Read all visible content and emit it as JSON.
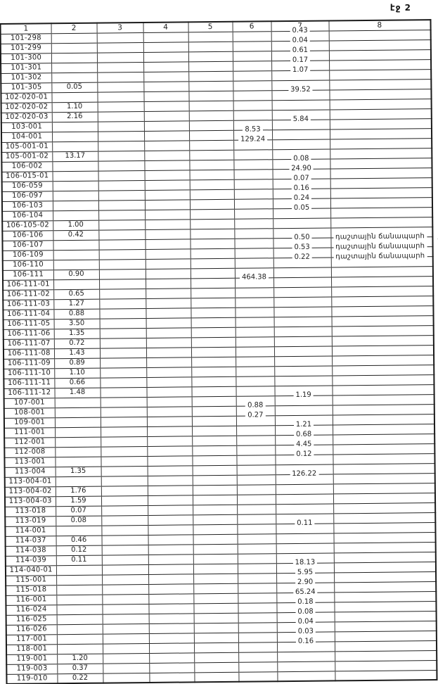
{
  "page_label": "էջ 2",
  "colors": {
    "ink": "#1e1e1e",
    "paper": "#ffffff",
    "rule": "#232323"
  },
  "table": {
    "column_headers": [
      "1",
      "2",
      "3",
      "4",
      "5",
      "6",
      "7",
      "8"
    ],
    "note_text": "դաշտային ճանապարհ",
    "rows": [
      [
        "101-298",
        "",
        "",
        "",
        "",
        "",
        "0.43",
        ""
      ],
      [
        "101-299",
        "",
        "",
        "",
        "",
        "",
        "0.04",
        ""
      ],
      [
        "101-300",
        "",
        "",
        "",
        "",
        "",
        "0.61",
        ""
      ],
      [
        "101-301",
        "",
        "",
        "",
        "",
        "",
        "0.17",
        ""
      ],
      [
        "101-302",
        "",
        "",
        "",
        "",
        "",
        "1.07",
        ""
      ],
      [
        "101-305",
        "0.05",
        "",
        "",
        "",
        "",
        "",
        ""
      ],
      [
        "102-020-01",
        "",
        "",
        "",
        "",
        "",
        "39.52",
        ""
      ],
      [
        "102-020-02",
        "1.10",
        "",
        "",
        "",
        "",
        "",
        ""
      ],
      [
        "102-020-03",
        "2.16",
        "",
        "",
        "",
        "",
        "",
        ""
      ],
      [
        "103-001",
        "",
        "",
        "",
        "",
        "",
        "5.84",
        ""
      ],
      [
        "104-001",
        "",
        "",
        "",
        "",
        "8.53",
        "",
        ""
      ],
      [
        "105-001-01",
        "",
        "",
        "",
        "",
        "129.24",
        "",
        ""
      ],
      [
        "105-001-02",
        "13.17",
        "",
        "",
        "",
        "",
        "",
        ""
      ],
      [
        "106-002",
        "",
        "",
        "",
        "",
        "",
        "0.08",
        ""
      ],
      [
        "106-015-01",
        "",
        "",
        "",
        "",
        "",
        "24.90",
        ""
      ],
      [
        "106-059",
        "",
        "",
        "",
        "",
        "",
        "0.07",
        ""
      ],
      [
        "106-097",
        "",
        "",
        "",
        "",
        "",
        "0.16",
        ""
      ],
      [
        "106-103",
        "",
        "",
        "",
        "",
        "",
        "0.24",
        ""
      ],
      [
        "106-104",
        "",
        "",
        "",
        "",
        "",
        "0.05",
        ""
      ],
      [
        "106-105-02",
        "1.00",
        "",
        "",
        "",
        "",
        "",
        ""
      ],
      [
        "106-106",
        "0.42",
        "",
        "",
        "",
        "",
        "",
        ""
      ],
      [
        "106-107",
        "",
        "",
        "",
        "",
        "",
        "0.50",
        "դաշտային ճանապարհ"
      ],
      [
        "106-109",
        "",
        "",
        "",
        "",
        "",
        "0.53",
        "դաշտային ճանապարհ"
      ],
      [
        "106-110",
        "",
        "",
        "",
        "",
        "",
        "0.22",
        "դաշտային ճանապարհ"
      ],
      [
        "106-111",
        "0.90",
        "",
        "",
        "",
        "",
        "",
        ""
      ],
      [
        "106-111-01",
        "",
        "",
        "",
        "",
        "464.38",
        "",
        ""
      ],
      [
        "106-111-02",
        "0.65",
        "",
        "",
        "",
        "",
        "",
        ""
      ],
      [
        "106-111-03",
        "1.27",
        "",
        "",
        "",
        "",
        "",
        ""
      ],
      [
        "106-111-04",
        "0.88",
        "",
        "",
        "",
        "",
        "",
        ""
      ],
      [
        "106-111-05",
        "3.50",
        "",
        "",
        "",
        "",
        "",
        ""
      ],
      [
        "106-111-06",
        "1.35",
        "",
        "",
        "",
        "",
        "",
        ""
      ],
      [
        "106-111-07",
        "0.72",
        "",
        "",
        "",
        "",
        "",
        ""
      ],
      [
        "106-111-08",
        "1.43",
        "",
        "",
        "",
        "",
        "",
        ""
      ],
      [
        "106-111-09",
        "0.89",
        "",
        "",
        "",
        "",
        "",
        ""
      ],
      [
        "106-111-10",
        "1.10",
        "",
        "",
        "",
        "",
        "",
        ""
      ],
      [
        "106-111-11",
        "0.66",
        "",
        "",
        "",
        "",
        "",
        ""
      ],
      [
        "106-111-12",
        "1.48",
        "",
        "",
        "",
        "",
        "",
        ""
      ],
      [
        "107-001",
        "",
        "",
        "",
        "",
        "",
        "1.19",
        ""
      ],
      [
        "108-001",
        "",
        "",
        "",
        "",
        "0.88",
        "",
        ""
      ],
      [
        "109-001",
        "",
        "",
        "",
        "",
        "0.27",
        "",
        ""
      ],
      [
        "111-001",
        "",
        "",
        "",
        "",
        "",
        "1.21",
        ""
      ],
      [
        "112-001",
        "",
        "",
        "",
        "",
        "",
        "0.68",
        ""
      ],
      [
        "112-008",
        "",
        "",
        "",
        "",
        "",
        "4.45",
        ""
      ],
      [
        "113-001",
        "",
        "",
        "",
        "",
        "",
        "0.12",
        ""
      ],
      [
        "113-004",
        "1.35",
        "",
        "",
        "",
        "",
        "",
        ""
      ],
      [
        "113-004-01",
        "",
        "",
        "",
        "",
        "",
        "126.22",
        ""
      ],
      [
        "113-004-02",
        "1.76",
        "",
        "",
        "",
        "",
        "",
        ""
      ],
      [
        "113-004-03",
        "1.59",
        "",
        "",
        "",
        "",
        "",
        ""
      ],
      [
        "113-018",
        "0.07",
        "",
        "",
        "",
        "",
        "",
        ""
      ],
      [
        "113-019",
        "0.08",
        "",
        "",
        "",
        "",
        "",
        ""
      ],
      [
        "114-001",
        "",
        "",
        "",
        "",
        "",
        "0.11",
        ""
      ],
      [
        "114-037",
        "0.46",
        "",
        "",
        "",
        "",
        "",
        ""
      ],
      [
        "114-038",
        "0.12",
        "",
        "",
        "",
        "",
        "",
        ""
      ],
      [
        "114-039",
        "0.11",
        "",
        "",
        "",
        "",
        "",
        ""
      ],
      [
        "114-040-01",
        "",
        "",
        "",
        "",
        "",
        "18.13",
        ""
      ],
      [
        "115-001",
        "",
        "",
        "",
        "",
        "",
        "5.95",
        ""
      ],
      [
        "115-018",
        "",
        "",
        "",
        "",
        "",
        "2.90",
        ""
      ],
      [
        "116-001",
        "",
        "",
        "",
        "",
        "",
        "65.24",
        ""
      ],
      [
        "116-024",
        "",
        "",
        "",
        "",
        "",
        "0.18",
        ""
      ],
      [
        "116-025",
        "",
        "",
        "",
        "",
        "",
        "0.08",
        ""
      ],
      [
        "116-026",
        "",
        "",
        "",
        "",
        "",
        "0.04",
        ""
      ],
      [
        "117-001",
        "",
        "",
        "",
        "",
        "",
        "0.03",
        ""
      ],
      [
        "118-001",
        "",
        "",
        "",
        "",
        "",
        "0.16",
        ""
      ],
      [
        "119-001",
        "1.20",
        "",
        "",
        "",
        "",
        "",
        ""
      ],
      [
        "119-003",
        "0.37",
        "",
        "",
        "",
        "",
        "",
        ""
      ],
      [
        "119-010",
        "0.22",
        "",
        "",
        "",
        "",
        "",
        ""
      ]
    ],
    "edge_marks": {
      "21": ".ո",
      "22": ".ձ",
      "23": ".ձ"
    }
  }
}
